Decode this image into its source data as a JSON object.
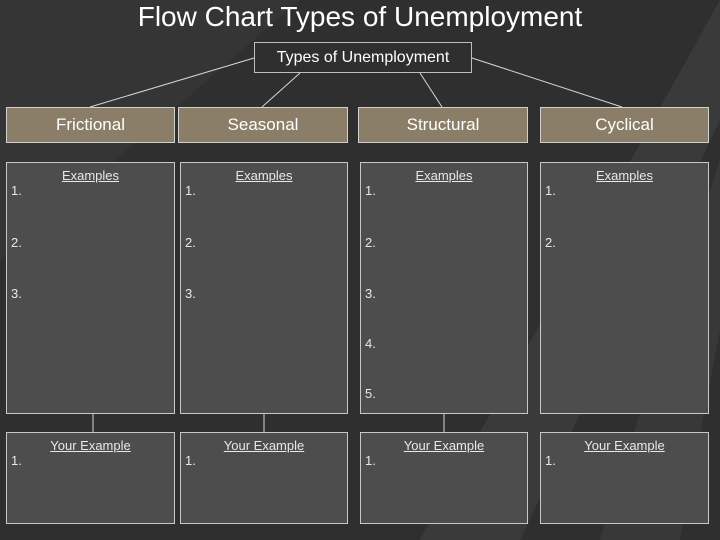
{
  "title": "Flow Chart Types of Unemployment",
  "root": "Types of Unemployment",
  "categories": [
    {
      "name": "Frictional",
      "examples_label": "Examples",
      "examples": [
        "1.",
        "2.",
        "3."
      ],
      "your_example_label": "Your Example",
      "your_examples": [
        "1."
      ]
    },
    {
      "name": "Seasonal",
      "examples_label": "Examples",
      "examples": [
        "1.",
        "2.",
        "3."
      ],
      "your_example_label": "Your Example",
      "your_examples": [
        "1."
      ]
    },
    {
      "name": "Structural",
      "examples_label": "Examples",
      "examples": [
        "1.",
        "2.",
        "3.",
        "4.",
        "5."
      ],
      "your_example_label": "Your Example",
      "your_examples": [
        "1."
      ]
    },
    {
      "name": "Cyclical",
      "examples_label": "Examples",
      "examples": [
        "1.",
        "2."
      ],
      "your_example_label": "Your Example",
      "your_examples": [
        "1."
      ]
    }
  ],
  "colors": {
    "background": "#2f2f2f",
    "category_fill": "#8b7e68",
    "box_fill": "#4d4d4d",
    "border": "#c8c8c8"
  }
}
